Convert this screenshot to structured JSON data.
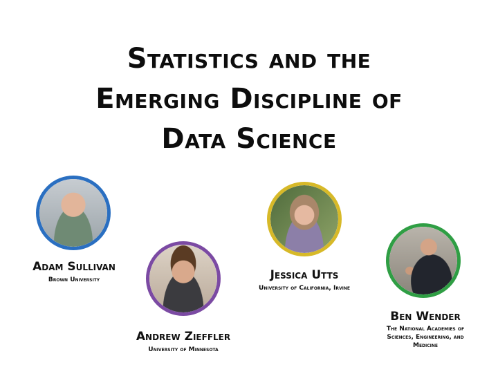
{
  "title": {
    "line1": "Statistics and the",
    "line2": "Emerging Discipline of",
    "line3": "Data Science"
  },
  "speakers": [
    {
      "name": "Adam Sullivan",
      "affiliation": "Brown University",
      "ring_color": "#2a6fc1"
    },
    {
      "name": "Andrew Zieffler",
      "affiliation": "University of Minnesota",
      "ring_color": "#7b4aa3"
    },
    {
      "name": "Jessica Utts",
      "affiliation": "University of California, Irvine",
      "ring_color": "#d7b928"
    },
    {
      "name": "Ben Wender",
      "affiliation_lines": [
        "The National Academies of",
        "Sciences, Engineering, and",
        "Medicine"
      ],
      "ring_color": "#2f9e44"
    }
  ]
}
